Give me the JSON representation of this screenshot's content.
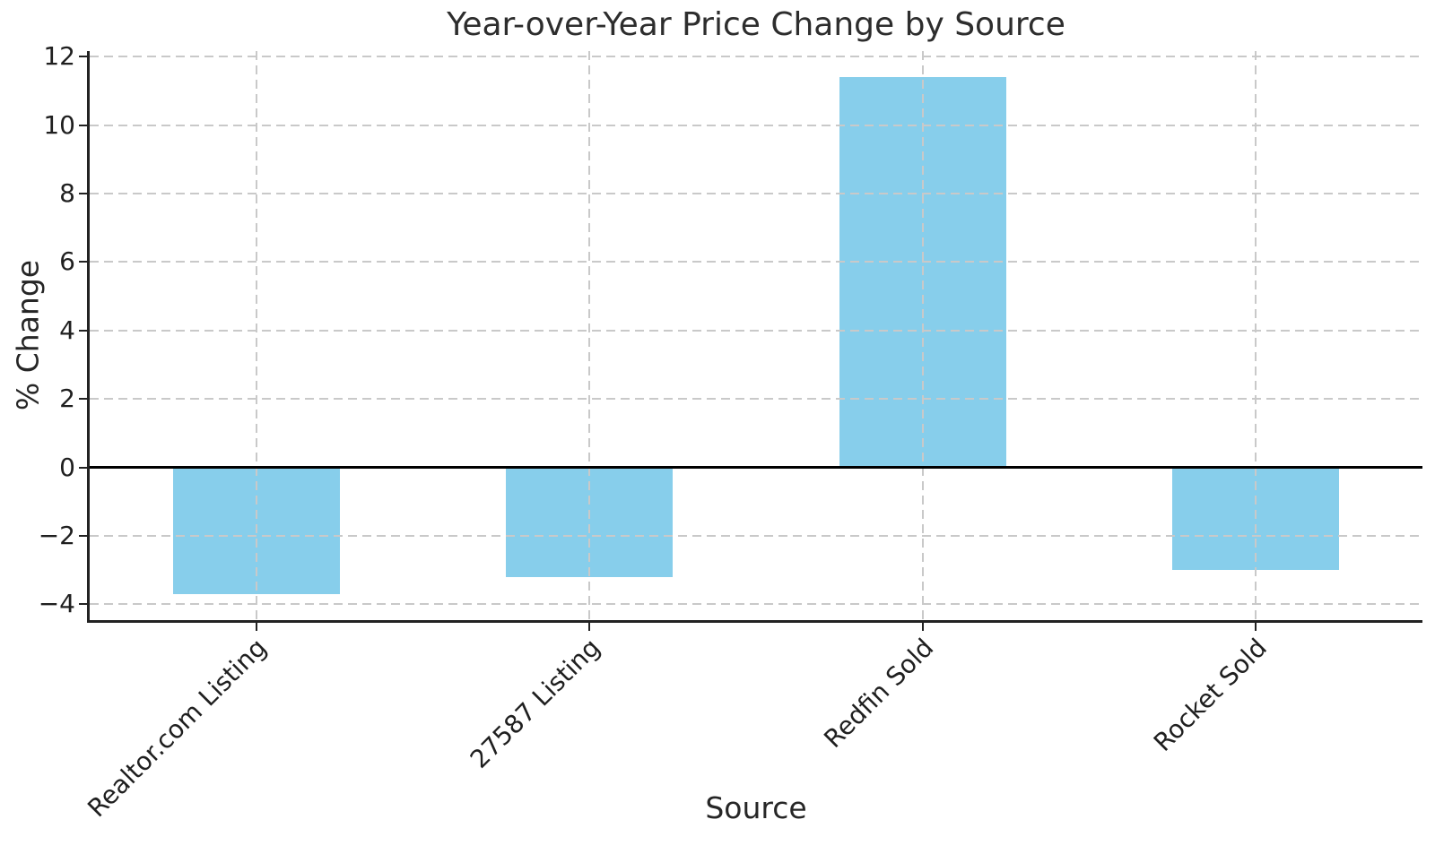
{
  "chart_data": {
    "type": "bar",
    "title": "Year-over-Year Price Change by Source",
    "xlabel": "Source",
    "ylabel": "% Change",
    "categories": [
      "Realtor.com Listing",
      "27587 Listing",
      "Redfin Sold",
      "Rocket Sold"
    ],
    "values": [
      -3.7,
      -3.2,
      11.4,
      -3.0
    ],
    "yticks": [
      -4,
      -2,
      0,
      2,
      4,
      6,
      8,
      10,
      12
    ],
    "ylim": [
      -4.46,
      12.16
    ],
    "xlim": [
      -0.5,
      3.5
    ],
    "bar_width_units": 0.5,
    "bar_color": "#87CEEB",
    "grid": {
      "style": "dashed",
      "color": "#c9c9c9",
      "horizontal": true,
      "vertical": true
    },
    "zero_line": {
      "show": true,
      "color": "#000000"
    },
    "axis_color": "#222222",
    "text_color": "#262626",
    "background": "#ffffff",
    "legend": null
  }
}
